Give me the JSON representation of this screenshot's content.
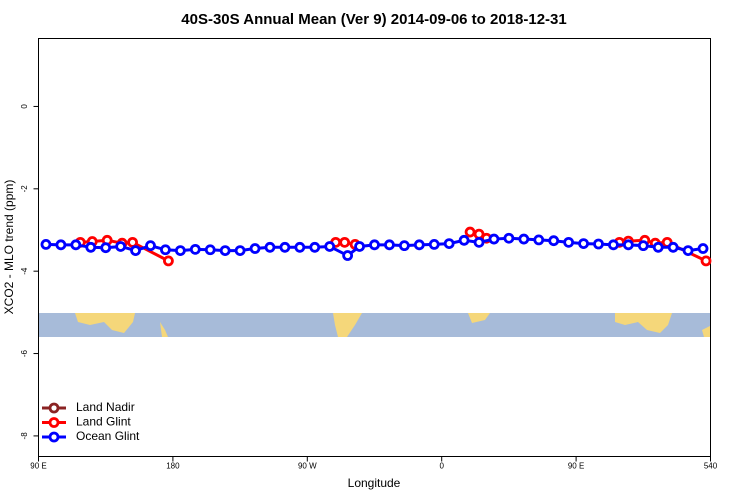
{
  "chart_data": {
    "type": "line",
    "title": "40S-30S Annual Mean (Ver 9)   2014-09-06 to 2018-12-31",
    "x_label": "Longitude",
    "y_label": "XCO2 - MLO trend (ppm)",
    "xlim": [
      90,
      540
    ],
    "ylim": [
      -8.5,
      1.65
    ],
    "xticks": [
      {
        "value": 90,
        "label": "90 E"
      },
      180,
      {
        "value": 270,
        "label": "90 W"
      },
      {
        "value": 360,
        "label": "0"
      },
      {
        "value": 450,
        "label": "90 E"
      },
      540
    ],
    "yticks": [
      0,
      -2,
      -4,
      -6,
      -8
    ],
    "legend": "bottom-left",
    "series": [
      {
        "name": "Land Nadir",
        "color": "#8b2323",
        "x": [],
        "values": []
      },
      {
        "name": "Land Glint",
        "color": "#ff0000",
        "x": [
          118,
          126,
          136,
          146,
          153,
          177,
          null,
          289,
          295,
          302,
          null,
          379,
          385,
          390,
          null,
          479,
          485,
          496,
          503,
          511,
          537
        ],
        "values": [
          -3.3,
          -3.28,
          -3.25,
          -3.32,
          -3.3,
          -3.75,
          null,
          -3.3,
          -3.3,
          -3.35,
          null,
          -3.05,
          -3.1,
          -3.2,
          null,
          -3.3,
          -3.27,
          -3.25,
          -3.32,
          -3.3,
          -3.75
        ]
      },
      {
        "name": "Ocean Glint",
        "color": "#0000ff",
        "x": [
          95,
          105,
          115,
          125,
          135,
          145,
          155,
          165,
          175,
          185,
          195,
          205,
          215,
          225,
          235,
          245,
          255,
          265,
          275,
          285,
          297,
          305,
          315,
          325,
          335,
          345,
          355,
          365,
          375,
          385,
          395,
          405,
          415,
          425,
          435,
          445,
          455,
          465,
          475,
          485,
          495,
          505,
          515,
          525,
          535
        ],
        "values": [
          -3.35,
          -3.36,
          -3.36,
          -3.42,
          -3.43,
          -3.4,
          -3.5,
          -3.38,
          -3.48,
          -3.5,
          -3.47,
          -3.48,
          -3.5,
          -3.5,
          -3.45,
          -3.42,
          -3.42,
          -3.42,
          -3.42,
          -3.4,
          -3.62,
          -3.4,
          -3.36,
          -3.36,
          -3.38,
          -3.36,
          -3.35,
          -3.33,
          -3.25,
          -3.3,
          -3.22,
          -3.2,
          -3.22,
          -3.24,
          -3.26,
          -3.3,
          -3.33,
          -3.34,
          -3.36,
          -3.36,
          -3.38,
          -3.42,
          -3.42,
          -3.5,
          -3.45
        ]
      }
    ]
  }
}
